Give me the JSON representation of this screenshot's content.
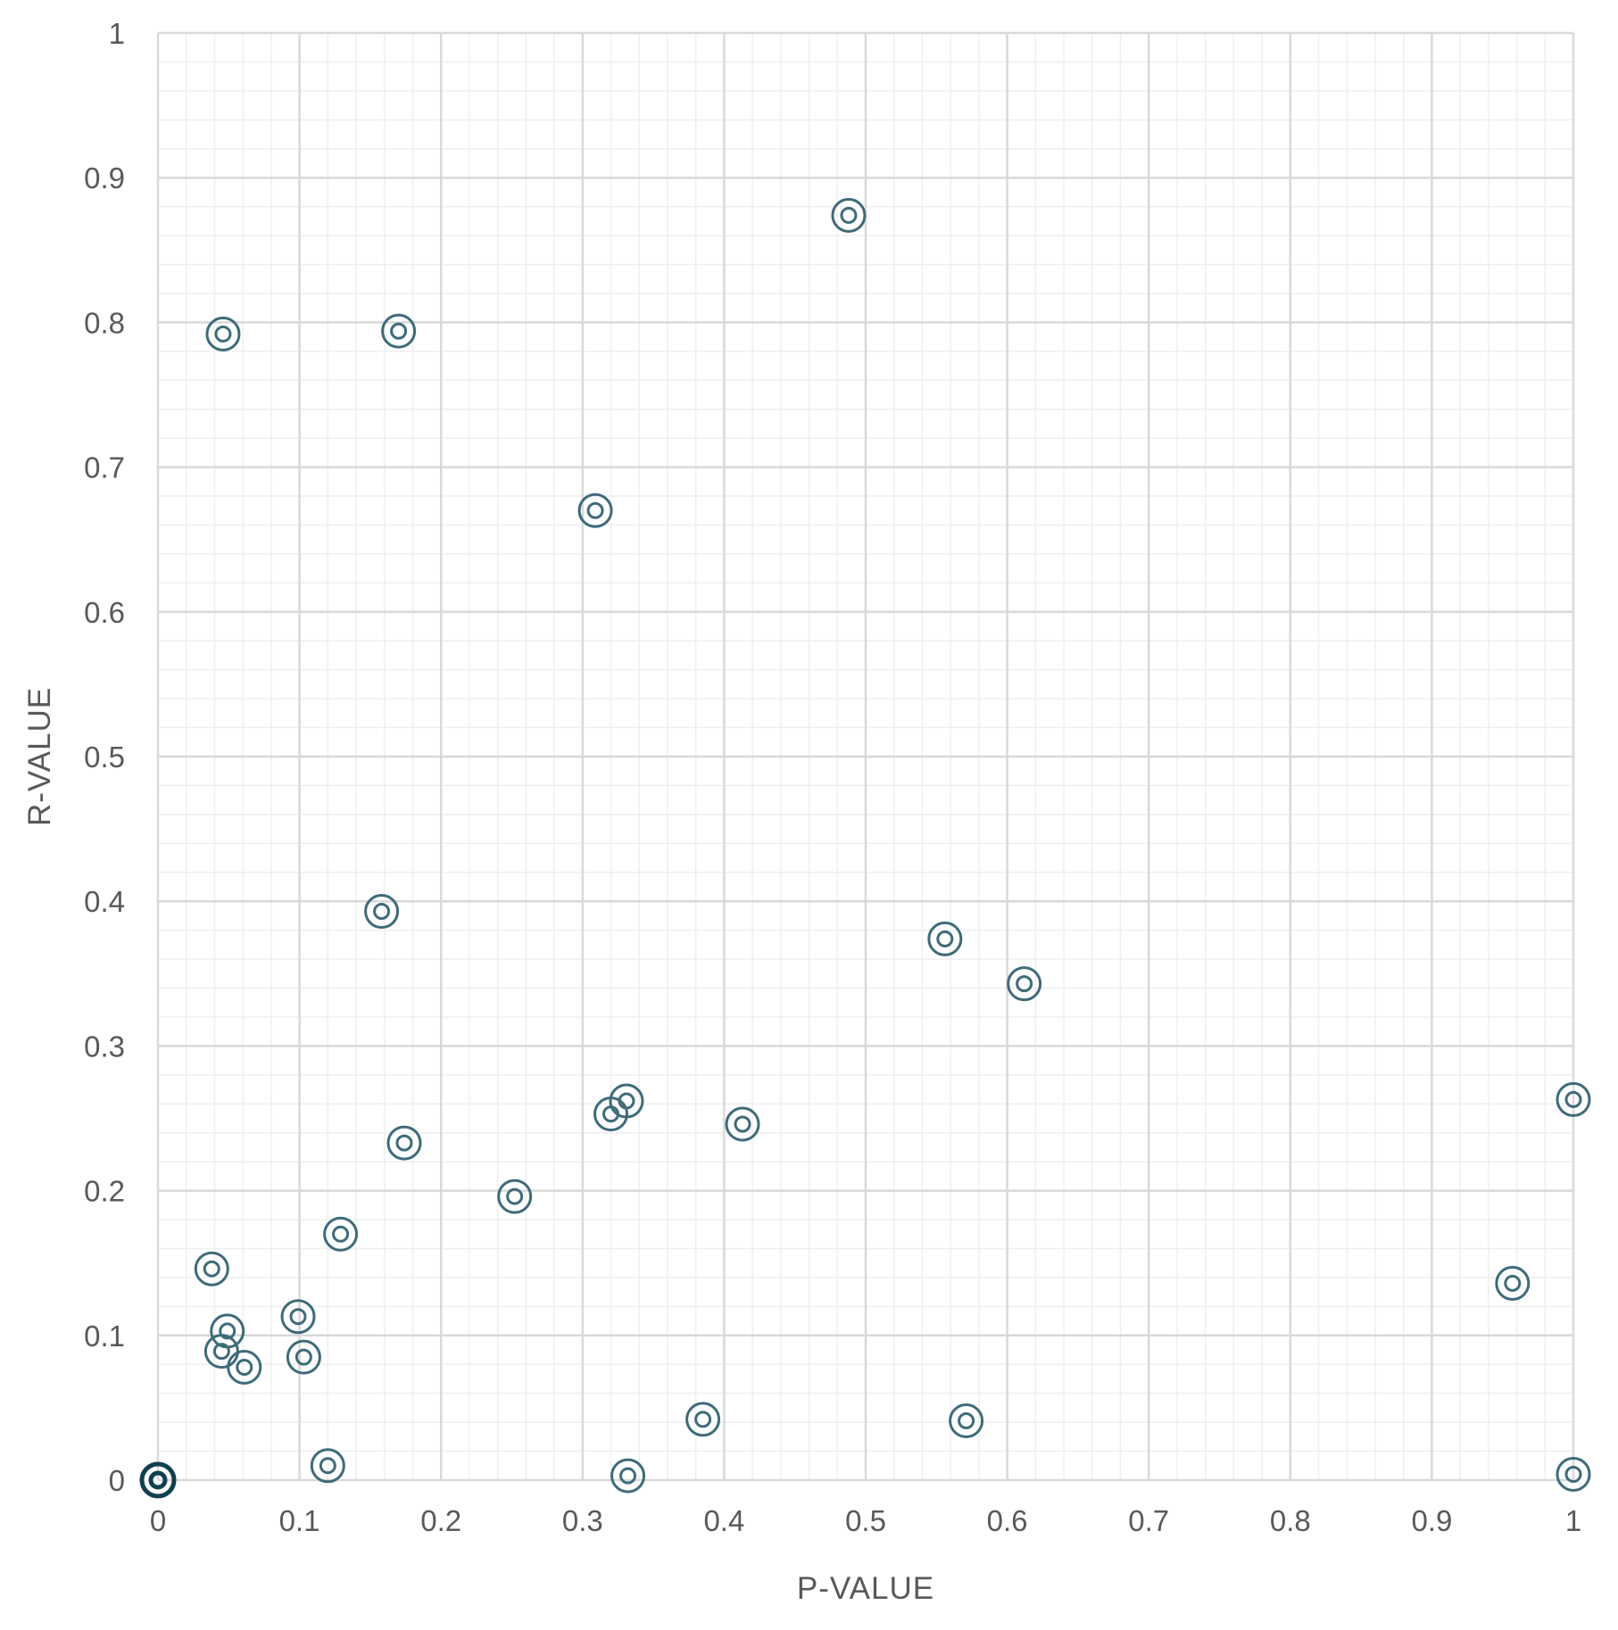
{
  "chart_data": {
    "type": "scatter",
    "title": "",
    "xlabel": "P-VALUE",
    "ylabel": "R-VALUE",
    "xlim": [
      0,
      1
    ],
    "ylim": [
      0,
      1
    ],
    "x_ticks": [
      0,
      0.1,
      0.2,
      0.3,
      0.4,
      0.5,
      0.6,
      0.7,
      0.8,
      0.9,
      1
    ],
    "x_tick_labels": [
      "0",
      "0.1",
      "0.2",
      "0.3",
      "0.4",
      "0.5",
      "0.6",
      "0.7",
      "0.8",
      "0.9",
      "1"
    ],
    "y_ticks": [
      0,
      0.1,
      0.2,
      0.3,
      0.4,
      0.5,
      0.6,
      0.7,
      0.8,
      0.9,
      1
    ],
    "y_tick_labels": [
      "0",
      "0.1",
      "0.2",
      "0.3",
      "0.4",
      "0.5",
      "0.6",
      "0.7",
      "0.8",
      "0.9",
      "1"
    ],
    "grid": true,
    "minor_grid": true,
    "legend": "none",
    "marker": "double-circle",
    "colors": {
      "marker": "#3d6b7a",
      "marker_at_origin": "#0f3f52",
      "major_grid": "#d9d9d9",
      "minor_grid": "#efefef",
      "tick_label": "#595959"
    },
    "series": [
      {
        "points": [
          {
            "x": 0.488,
            "y": 0.874
          },
          {
            "x": 0.046,
            "y": 0.792
          },
          {
            "x": 0.17,
            "y": 0.794
          },
          {
            "x": 0.309,
            "y": 0.67
          },
          {
            "x": 0.158,
            "y": 0.393
          },
          {
            "x": 0.556,
            "y": 0.374
          },
          {
            "x": 0.612,
            "y": 0.343
          },
          {
            "x": 0.331,
            "y": 0.262
          },
          {
            "x": 0.32,
            "y": 0.253
          },
          {
            "x": 0.413,
            "y": 0.246
          },
          {
            "x": 1.0,
            "y": 0.263
          },
          {
            "x": 0.174,
            "y": 0.233
          },
          {
            "x": 0.252,
            "y": 0.196
          },
          {
            "x": 0.129,
            "y": 0.17
          },
          {
            "x": 0.038,
            "y": 0.146
          },
          {
            "x": 0.957,
            "y": 0.136
          },
          {
            "x": 0.099,
            "y": 0.113
          },
          {
            "x": 0.049,
            "y": 0.103
          },
          {
            "x": 0.045,
            "y": 0.089
          },
          {
            "x": 0.103,
            "y": 0.085
          },
          {
            "x": 0.061,
            "y": 0.078
          },
          {
            "x": 0.385,
            "y": 0.042
          },
          {
            "x": 0.571,
            "y": 0.041
          },
          {
            "x": 0.12,
            "y": 0.01
          },
          {
            "x": 0.332,
            "y": 0.003
          },
          {
            "x": 1.0,
            "y": 0.004
          },
          {
            "x": 0.0,
            "y": 0.0
          }
        ]
      }
    ]
  }
}
